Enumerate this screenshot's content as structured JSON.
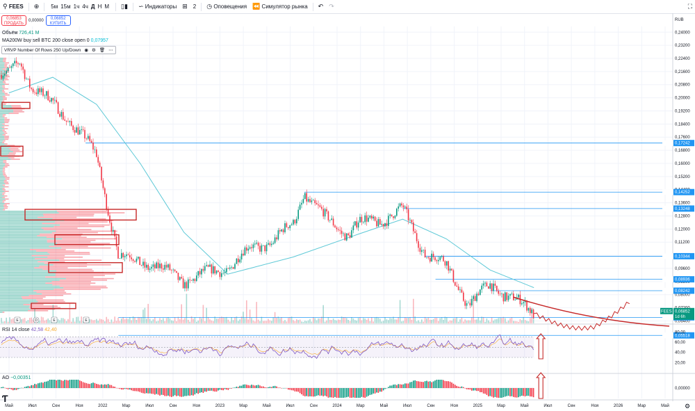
{
  "toolbar": {
    "search_icon": "search-icon",
    "symbol": "FEES",
    "add_icon": "plus-circle-icon",
    "intervals": [
      "5м",
      "15м",
      "1ч",
      "4ч",
      "Д",
      "Н",
      "М"
    ],
    "active_interval": "Д",
    "indicators_label": "Индикаторы",
    "templates_count": "2",
    "alerts_label": "Оповещения",
    "replay_label": "Симулятор рынка"
  },
  "trade": {
    "sell_price": "0,06853",
    "sell_label": "ПРОДАТЬ",
    "spread": "0,00000",
    "buy_price": "0,06852",
    "buy_label": "КУПИТЬ"
  },
  "legends": {
    "volume_label": "Объём",
    "volume_value": "726,41 M",
    "ma_label": "MA200W buy sell BTC 200 close open 0",
    "ma_value": "0,07957",
    "vrvp_label": "VRVP Number Of Rows 250 Up/Down",
    "rsi_label": "RSI 14 close",
    "rsi_value1": "42,58",
    "rsi_value2": "42,40",
    "ao_label": "AO",
    "ao_value": "−0,00351"
  },
  "price_axis": {
    "currency": "RUB",
    "ticks": [
      "0,24000",
      "0,23200",
      "0,22400",
      "0,21600",
      "0,20800",
      "0,20000",
      "0,19200",
      "0,18400",
      "0,17600",
      "0,16800",
      "0,16000",
      "0,15200",
      "0,14400",
      "0,13600",
      "0,12800",
      "0,12000",
      "0,11200",
      "0,10400",
      "0,09600",
      "0,08800",
      "0,08000",
      "0,07200",
      "0,06400"
    ],
    "levels": [
      {
        "label": "0,17242",
        "value": 0.17242
      },
      {
        "label": "0,14252",
        "value": 0.14252
      },
      {
        "label": "0,13248",
        "value": 0.13248
      },
      {
        "label": "0,10344",
        "value": 0.10344
      },
      {
        "label": "0,08936",
        "value": 0.08936
      },
      {
        "label": "0,08242",
        "value": 0.08242
      },
      {
        "label": "0,06616",
        "value": 0.06616
      },
      {
        "label": "0,05518",
        "value": 0.05518
      }
    ],
    "current": {
      "symbol": "FEES",
      "price": "0,06852",
      "countdown": "1d 6h"
    }
  },
  "rsi_axis": [
    "80,00",
    "60,00",
    "40,00",
    "20,00"
  ],
  "ao_axis": [
    "0,00000"
  ],
  "time_axis": [
    "Май",
    "Июл",
    "Сен",
    "Ноя",
    "2022",
    "Мар",
    "Июл",
    "Сен",
    "Ноя",
    "2023",
    "Мар",
    "Май",
    "Июл",
    "Сен",
    "2024",
    "Мар",
    "Май",
    "Июл",
    "Сен",
    "Ноя",
    "2025",
    "Мар",
    "Май",
    "Июл",
    "Сен",
    "Ноя",
    "2026",
    "Мар",
    "Май"
  ],
  "colors": {
    "up": "#089981",
    "down": "#f23645",
    "ma": "#5cc8d6",
    "level": "#2196f3",
    "annotation": "#c62828",
    "rsi": "#7e57c2",
    "rsi_signal": "#f9a825"
  },
  "chart_data": {
    "type": "candlestick",
    "title": "FEES",
    "unit": "RUB",
    "ylim": [
      0.0625,
      0.2435
    ],
    "horizontal_levels": [
      0.17242,
      0.14252,
      0.13248,
      0.10344,
      0.08936,
      0.08242,
      0.06616,
      0.05518
    ],
    "price_path": [
      {
        "x": "2021-05",
        "y": 0.214
      },
      {
        "x": "2021-06",
        "y": 0.222
      },
      {
        "x": "2021-07",
        "y": 0.208
      },
      {
        "x": "2021-09",
        "y": 0.196
      },
      {
        "x": "2021-11",
        "y": 0.183
      },
      {
        "x": "2022-01",
        "y": 0.165
      },
      {
        "x": "2022-03",
        "y": 0.104
      },
      {
        "x": "2022-07",
        "y": 0.096
      },
      {
        "x": "2022-09",
        "y": 0.088
      },
      {
        "x": "2022-11",
        "y": 0.093
      },
      {
        "x": "2023-01",
        "y": 0.096
      },
      {
        "x": "2023-03",
        "y": 0.108
      },
      {
        "x": "2023-05",
        "y": 0.112
      },
      {
        "x": "2023-07",
        "y": 0.123
      },
      {
        "x": "2023-08",
        "y": 0.142
      },
      {
        "x": "2023-10",
        "y": 0.126
      },
      {
        "x": "2023-12",
        "y": 0.117
      },
      {
        "x": "2024-01",
        "y": 0.124
      },
      {
        "x": "2024-03",
        "y": 0.125
      },
      {
        "x": "2024-05",
        "y": 0.132
      },
      {
        "x": "2024-07",
        "y": 0.106
      },
      {
        "x": "2024-09",
        "y": 0.098
      },
      {
        "x": "2024-11",
        "y": 0.074
      },
      {
        "x": "2025-01",
        "y": 0.086
      },
      {
        "x": "2025-03",
        "y": 0.078
      },
      {
        "x": "2025-05",
        "y": 0.0685
      }
    ],
    "ma200w": "0,07957",
    "rsi": {
      "period": 14,
      "last": 42.58,
      "signal": 42.4,
      "levels": [
        30,
        70
      ]
    },
    "ao": {
      "last": -0.00351
    }
  }
}
